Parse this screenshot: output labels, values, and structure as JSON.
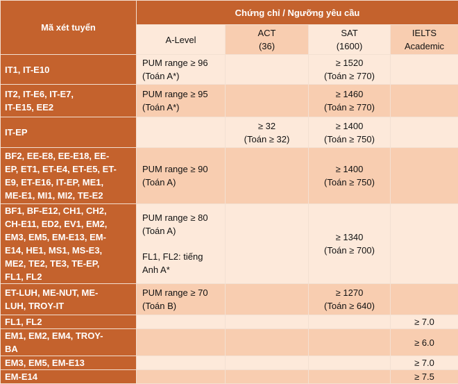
{
  "table": {
    "key_header": "Mã xét tuyển",
    "group_header": "Chứng chỉ / Ngưỡng yêu cầu",
    "columns": [
      [
        "A-Level"
      ],
      [
        "ACT",
        "(36)"
      ],
      [
        "SAT",
        "(1600)"
      ],
      [
        "IELTS",
        "Academic"
      ]
    ],
    "rows": [
      {
        "key": [
          "IT1, IT-E10"
        ],
        "cells": [
          [
            [
              "PUM range ≥ 96",
              "(Toán A*)"
            ]
          ],
          [],
          [
            [
              "≥ 1520",
              "(Toán ≥ 770)"
            ]
          ],
          []
        ]
      },
      {
        "key": [
          "IT2, IT-E6, IT-E7,",
          "IT-E15, EE2"
        ],
        "cells": [
          [
            [
              "PUM range ≥ 95",
              "(Toán A*)"
            ]
          ],
          [],
          [
            [
              "≥ 1460",
              "(Toán ≥ 770)"
            ]
          ],
          []
        ]
      },
      {
        "key": [
          "IT-EP"
        ],
        "cells": [
          [],
          [
            [
              "≥ 32",
              "(Toán ≥ 32)"
            ]
          ],
          [
            [
              "≥ 1400",
              "(Toán ≥ 750)"
            ]
          ],
          []
        ]
      },
      {
        "key": [
          "BF2, EE-E8, EE-E18, EE-",
          "EP, ET1, ET-E4, ET-E5, ET-",
          "E9, ET-E16, IT-EP, ME1,",
          "ME-E1, MI1, MI2, TE-E2"
        ],
        "cells": [
          [
            [
              "PUM range ≥ 90",
              "(Toán A)"
            ]
          ],
          [],
          [
            [
              "≥ 1400",
              "(Toán ≥ 750)"
            ]
          ],
          []
        ]
      },
      {
        "key": [
          "BF1, BF-E12, CH1, CH2,",
          "CH-E11, ED2, EV1, EM2,",
          "EM3, EM5, EM-E13, EM-",
          "E14, HE1, MS1, MS-E3,",
          "ME2, TE2, TE3, TE-EP,",
          "FL1, FL2"
        ],
        "cells": [
          [
            [
              "PUM range ≥ 80",
              "(Toán A)"
            ],
            [
              "FL1, FL2: tiếng",
              "Anh A*"
            ]
          ],
          [],
          [
            [
              "≥ 1340",
              "(Toán ≥ 700)"
            ]
          ],
          []
        ]
      },
      {
        "key": [
          "ET-LUH, ME-NUT, ME-",
          "LUH, TROY-IT"
        ],
        "cells": [
          [
            [
              "PUM range ≥ 70",
              "(Toán B)"
            ]
          ],
          [],
          [
            [
              "≥ 1270",
              "(Toán ≥ 640)"
            ]
          ],
          []
        ]
      },
      {
        "key": [
          "FL1, FL2"
        ],
        "cells": [
          [],
          [],
          [],
          [
            [
              "≥ 7.0"
            ]
          ]
        ]
      },
      {
        "key": [
          "EM1, EM2, EM4, TROY-",
          "BA"
        ],
        "cells": [
          [],
          [],
          [],
          [
            [
              "≥ 6.0"
            ]
          ]
        ]
      },
      {
        "key": [
          "EM3, EM5, EM-E13"
        ],
        "cells": [
          [],
          [],
          [],
          [
            [
              "≥ 7.0"
            ]
          ]
        ]
      },
      {
        "key": [
          "EM-E14"
        ],
        "cells": [
          [],
          [],
          [],
          [
            [
              "≥ 7.5"
            ]
          ]
        ]
      }
    ]
  }
}
